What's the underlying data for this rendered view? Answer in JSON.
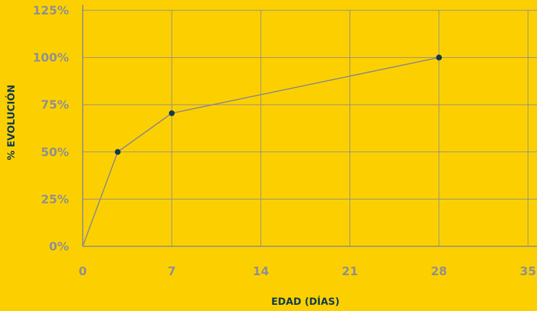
{
  "colors": {
    "background": "#FCD000",
    "grid": "#8E8E8E",
    "axis": "#8A8A8A",
    "line": "#8A8A8A",
    "marker": "#103A4E",
    "tick_label": "#909090",
    "axis_title": "#103A4E"
  },
  "chart_data": {
    "type": "line",
    "title": "",
    "xlabel": "EDAD (DÍAS)",
    "ylabel": "% EVOLUCIÓN",
    "xlim": [
      0,
      35
    ],
    "ylim": [
      0,
      125
    ],
    "x_ticks": [
      0,
      7,
      14,
      21,
      28,
      35
    ],
    "x_tick_labels": [
      "0",
      "7",
      "14",
      "21",
      "28",
      "35"
    ],
    "y_ticks": [
      0,
      25,
      50,
      75,
      100,
      125
    ],
    "y_tick_labels": [
      "0%",
      "25%",
      "50%",
      "75%",
      "100%",
      "125%"
    ],
    "grid": true,
    "legend": "none",
    "series": [
      {
        "x": [
          0,
          2.75,
          7,
          28
        ],
        "y": [
          0,
          50,
          70.5,
          100
        ],
        "markers": [
          false,
          true,
          true,
          true
        ]
      }
    ]
  }
}
